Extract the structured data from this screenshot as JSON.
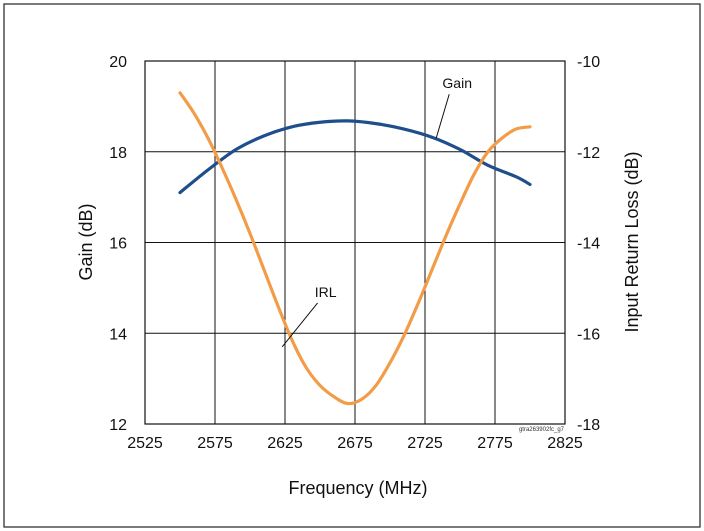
{
  "figure_id": "gtra263902fc_g7",
  "chart_data": {
    "type": "line",
    "xlabel": "Frequency (MHz)",
    "ylabel": "Gain (dB)",
    "y2label": "Input Return Loss (dB)",
    "xlim": [
      2525,
      2825
    ],
    "ylim": [
      12,
      20
    ],
    "y2lim": [
      -18,
      -10
    ],
    "xticks": [
      2525,
      2575,
      2625,
      2675,
      2725,
      2775,
      2825
    ],
    "yticks": [
      12,
      14,
      16,
      18,
      20
    ],
    "y2ticks": [
      -18,
      -16,
      -14,
      -12,
      -10
    ],
    "grid": true,
    "series": [
      {
        "name": "Gain",
        "axis": "left",
        "color": "#1f4e8c",
        "x": [
          2550,
          2570,
          2590,
          2610,
          2630,
          2650,
          2670,
          2690,
          2710,
          2730,
          2750,
          2770,
          2790,
          2800
        ],
        "values": [
          17.1,
          17.6,
          18.05,
          18.35,
          18.55,
          18.65,
          18.68,
          18.62,
          18.5,
          18.32,
          18.05,
          17.7,
          17.45,
          17.28
        ]
      },
      {
        "name": "IRL",
        "axis": "right",
        "color": "#f39c48",
        "x": [
          2550,
          2560,
          2570,
          2580,
          2590,
          2600,
          2610,
          2620,
          2630,
          2640,
          2650,
          2660,
          2670,
          2680,
          2690,
          2700,
          2710,
          2720,
          2730,
          2740,
          2750,
          2760,
          2770,
          2780,
          2790,
          2800
        ],
        "values": [
          -10.7,
          -11.15,
          -11.7,
          -12.35,
          -13.05,
          -13.8,
          -14.6,
          -15.4,
          -16.15,
          -16.75,
          -17.15,
          -17.4,
          -17.55,
          -17.45,
          -17.15,
          -16.65,
          -16.05,
          -15.35,
          -14.6,
          -13.85,
          -13.15,
          -12.5,
          -12.0,
          -11.7,
          -11.5,
          -11.45
        ]
      }
    ],
    "annotations": [
      {
        "text": "Gain",
        "x": 2748,
        "y": 19.4,
        "axis": "left",
        "line_to": [
          2733,
          18.3
        ]
      },
      {
        "text": "IRL",
        "x": 2654,
        "y": -15.2,
        "axis": "right",
        "line_to": [
          2623,
          -16.3
        ]
      }
    ]
  }
}
